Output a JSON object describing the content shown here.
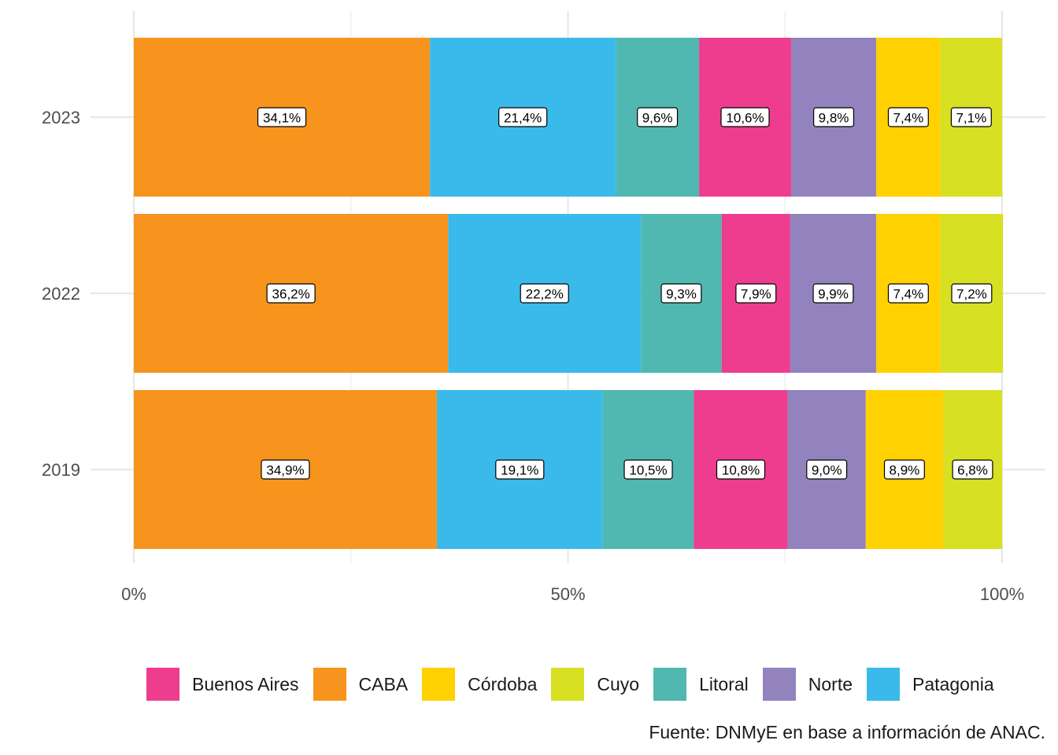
{
  "chart_data": {
    "type": "bar",
    "orientation": "horizontal",
    "stacked": true,
    "categories": [
      "2023",
      "2022",
      "2019"
    ],
    "series": [
      {
        "name": "CABA",
        "color": "#F7941D",
        "values": [
          34.1,
          36.2,
          34.9
        ],
        "labels": [
          "34,1%",
          "36,2%",
          "34,9%"
        ]
      },
      {
        "name": "Patagonia",
        "color": "#39BAEB",
        "values": [
          21.4,
          22.2,
          19.1
        ],
        "labels": [
          "21,4%",
          "22,2%",
          "19,1%"
        ]
      },
      {
        "name": "Litoral",
        "color": "#50B8B1",
        "values": [
          9.6,
          9.3,
          10.5
        ],
        "labels": [
          "9,6%",
          "9,3%",
          "10,5%"
        ]
      },
      {
        "name": "Buenos Aires",
        "color": "#EE3D8F",
        "values": [
          10.6,
          7.9,
          10.8
        ],
        "labels": [
          "10,6%",
          "7,9%",
          "10,8%"
        ]
      },
      {
        "name": "Norte",
        "color": "#9283BE",
        "values": [
          9.8,
          9.9,
          9.0
        ],
        "labels": [
          "9,8%",
          "9,9%",
          "9,0%"
        ]
      },
      {
        "name": "Córdoba",
        "color": "#FFD100",
        "values": [
          7.4,
          7.4,
          8.9
        ],
        "labels": [
          "7,4%",
          "7,4%",
          "8,9%"
        ]
      },
      {
        "name": "Cuyo",
        "color": "#D7E022",
        "values": [
          7.1,
          7.2,
          6.8
        ],
        "labels": [
          "7,1%",
          "7,2%",
          "6,8%"
        ]
      }
    ],
    "xlim": [
      0,
      100
    ],
    "x_ticks": [
      "0%",
      "50%",
      "100%"
    ],
    "x_tick_values": [
      0,
      50,
      100
    ],
    "title": "",
    "xlabel": "",
    "ylabel": "",
    "grid": true,
    "legend_position": "bottom"
  },
  "legend": [
    {
      "name": "Buenos Aires",
      "color": "#EE3D8F"
    },
    {
      "name": "CABA",
      "color": "#F7941D"
    },
    {
      "name": "Córdoba",
      "color": "#FFD100"
    },
    {
      "name": "Cuyo",
      "color": "#D7E022"
    },
    {
      "name": "Litoral",
      "color": "#50B8B1"
    },
    {
      "name": "Norte",
      "color": "#9283BE"
    },
    {
      "name": "Patagonia",
      "color": "#39BAEB"
    }
  ],
  "caption": "Fuente: DNMyE en base a información de ANAC."
}
